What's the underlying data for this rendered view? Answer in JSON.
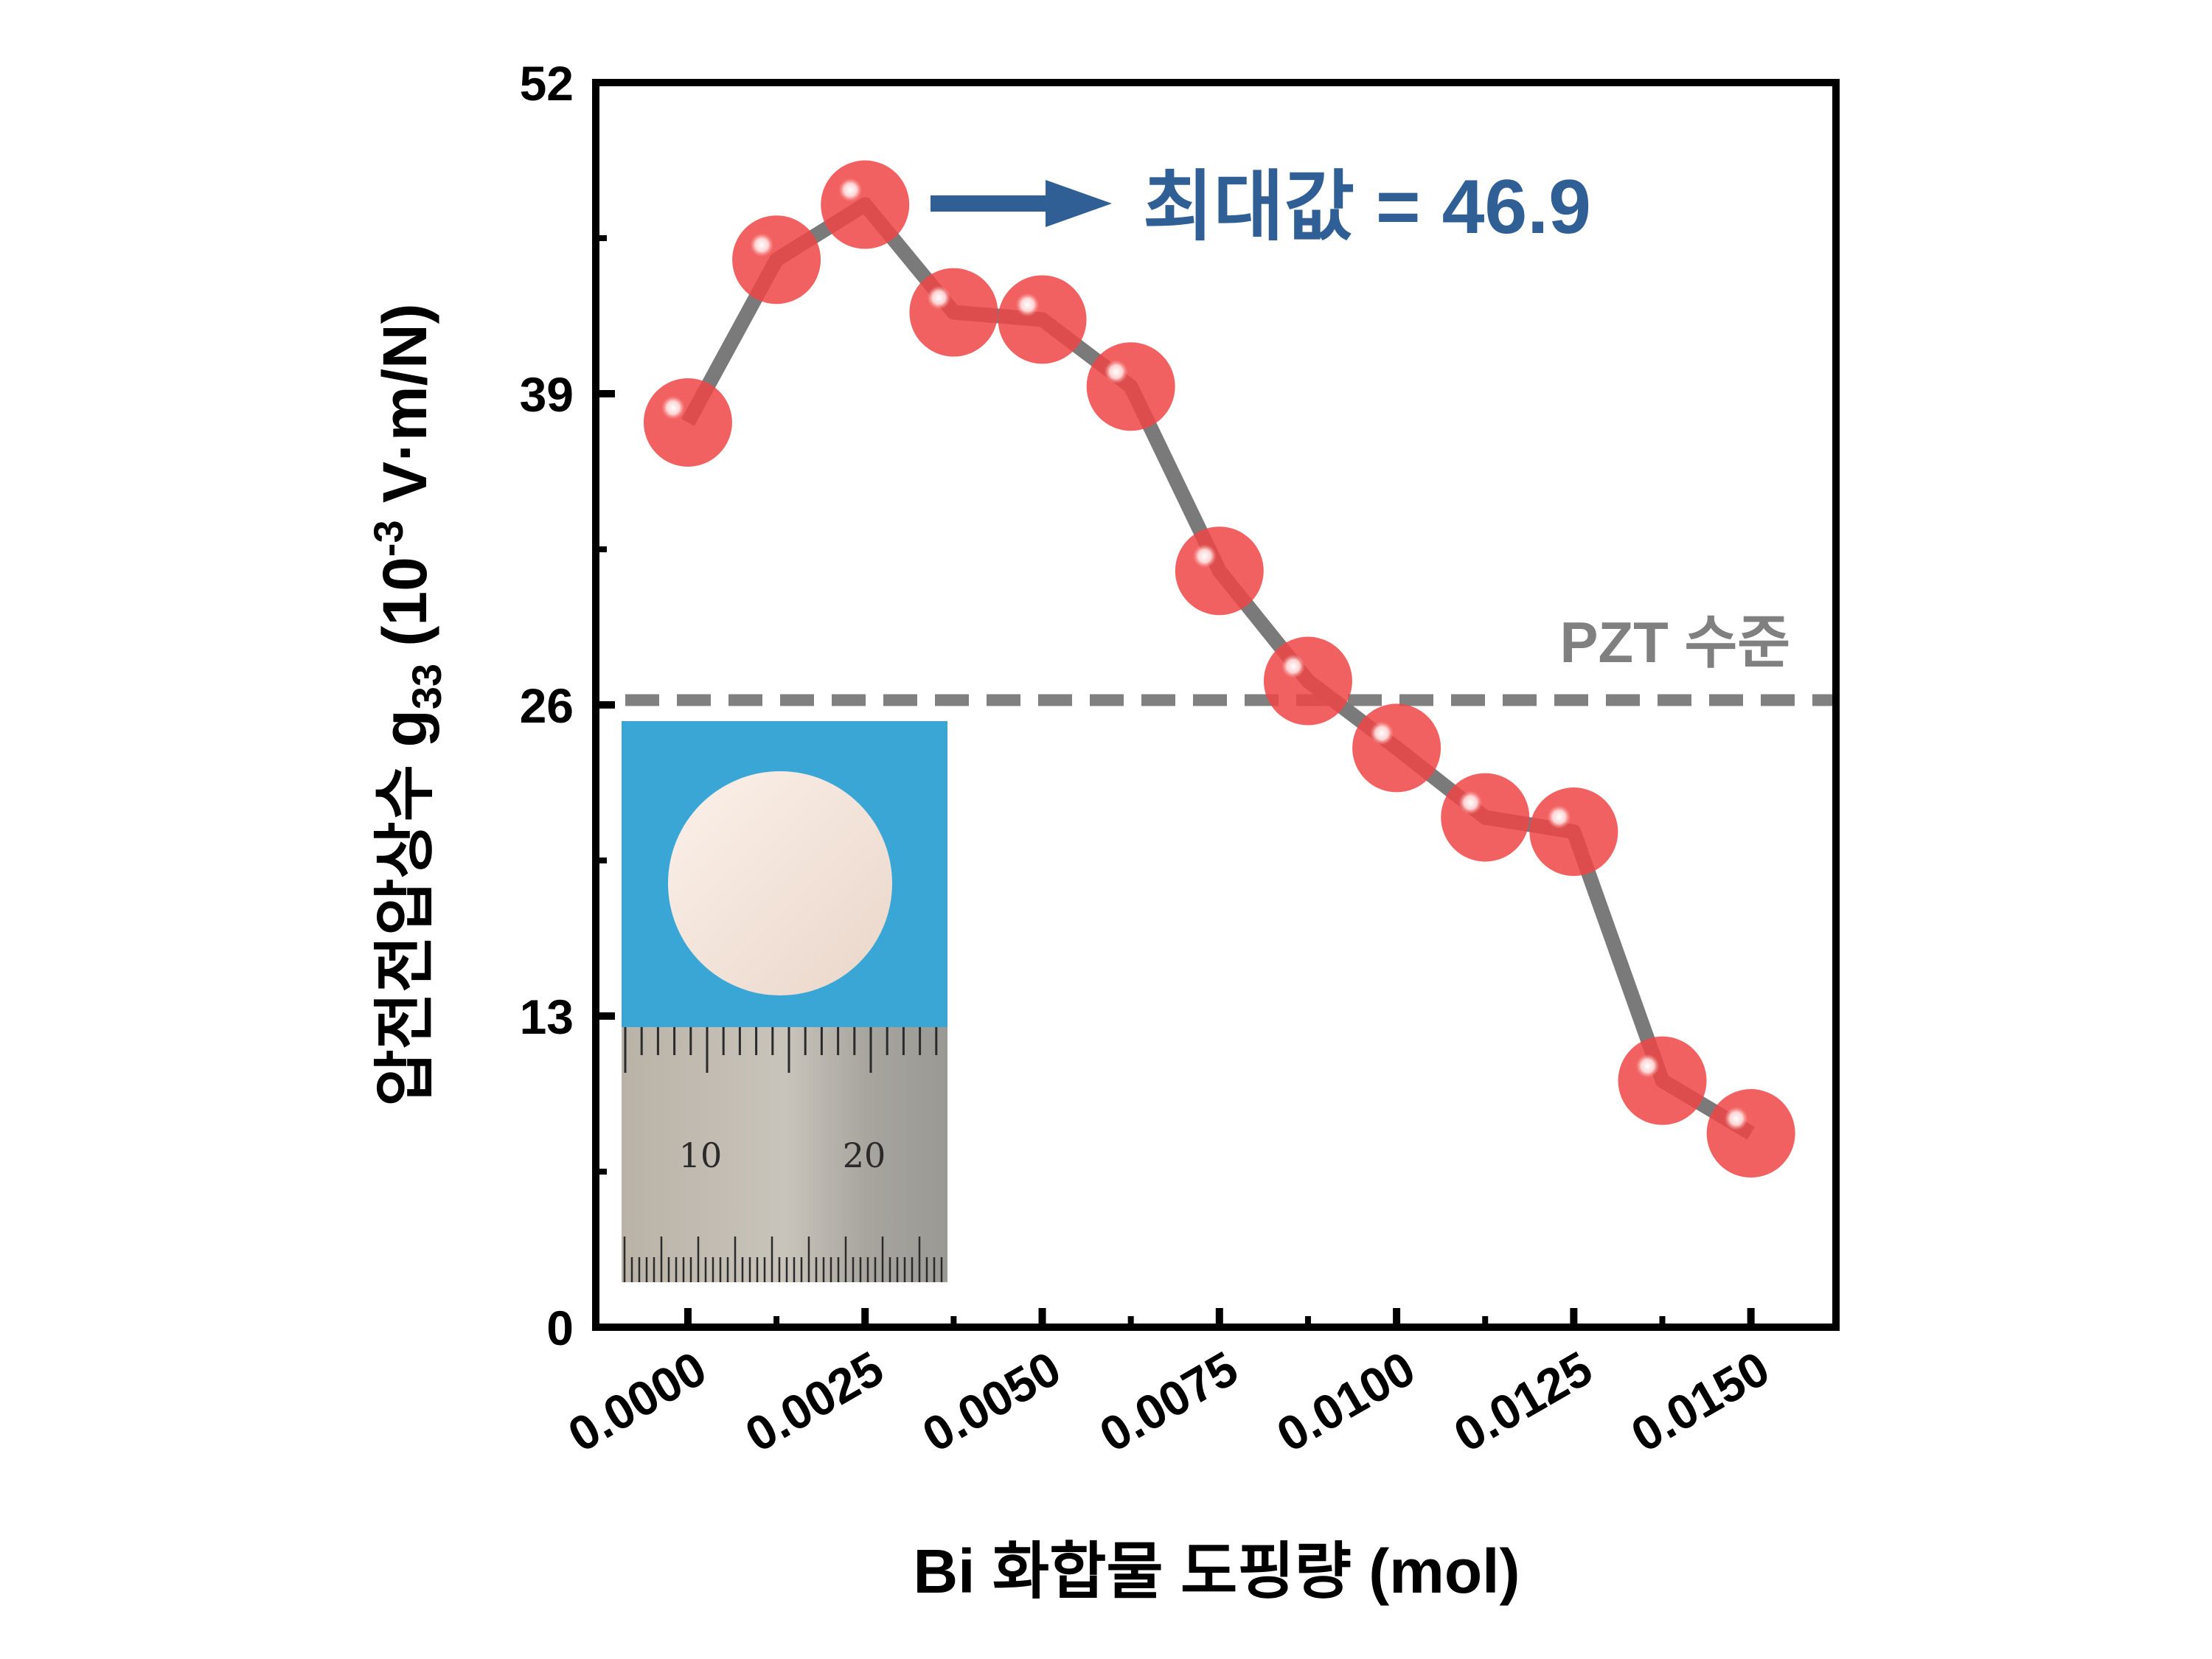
{
  "chart_data": {
    "type": "line",
    "xlabel": "Bi 화합물 도핑량 (mol)",
    "ylabel_prefix": "압전전압상수 g",
    "ylabel_sub": "33",
    "ylabel_unit_a": " (10",
    "ylabel_sup": "-3",
    "ylabel_unit_b": " V·m/N)",
    "xlim": [
      -0.0013,
      0.0162
    ],
    "ylim": [
      0,
      52
    ],
    "x_ticks": [
      0.0,
      0.0025,
      0.005,
      0.0075,
      0.01,
      0.0125,
      0.015
    ],
    "x_tick_labels": [
      "0.0000",
      "0.0025",
      "0.0050",
      "0.0075",
      "0.0100",
      "0.0125",
      "0.0150"
    ],
    "y_ticks": [
      0,
      13,
      26,
      39,
      52
    ],
    "y_tick_labels": [
      "0",
      "13",
      "26",
      "39",
      "52"
    ],
    "series": [
      {
        "x": [
          0.0,
          0.00125,
          0.0025,
          0.00375,
          0.005,
          0.00625,
          0.0075,
          0.00875,
          0.01,
          0.01125,
          0.0125,
          0.01375,
          0.015
        ],
        "y": [
          37.8,
          44.6,
          46.9,
          42.4,
          42.1,
          39.3,
          31.6,
          27.0,
          24.2,
          21.3,
          20.7,
          10.3,
          8.1
        ],
        "line_color": "#7a7a7a",
        "marker_color": "#f04545"
      }
    ],
    "reference_line": {
      "y": 26.2,
      "label": "PZT 수준",
      "color": "#808080",
      "style": "dashed"
    },
    "annotation": {
      "text": "최대값 = 46.9",
      "color": "#2f5f95",
      "arrow": true
    },
    "inset": {
      "ruler_labels": [
        "10",
        "20"
      ],
      "background": "#3aa6d6",
      "disc_color": "#f4e6dc"
    },
    "grid": false,
    "legend": "none"
  }
}
